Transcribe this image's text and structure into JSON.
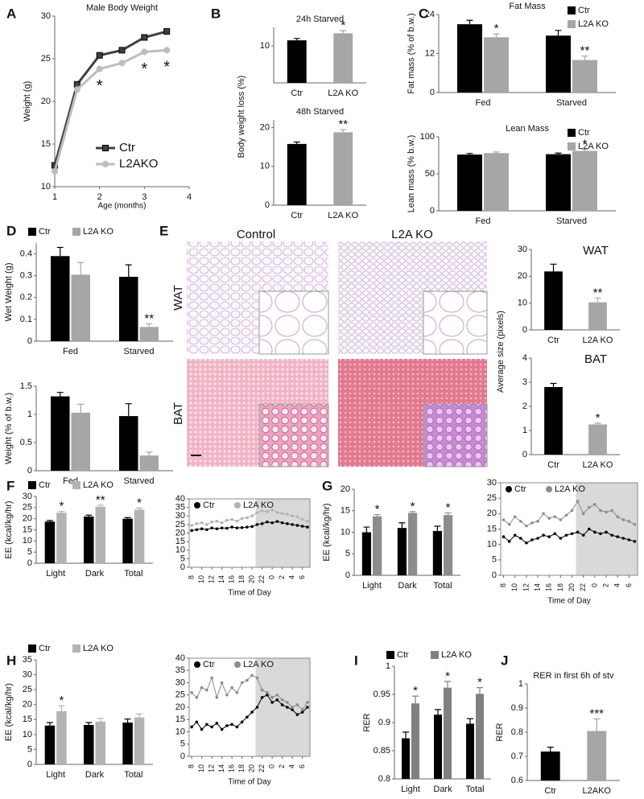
{
  "chart_data": [
    {
      "panel": "A",
      "type": "line",
      "title": "Male Body Weight",
      "xlabel": "Age (months)",
      "ylabel": "Weight (g)",
      "x": [
        1,
        1.5,
        2,
        2.5,
        3,
        3.5
      ],
      "xlim": [
        1,
        4
      ],
      "xticks": [
        1,
        2,
        3,
        4
      ],
      "ylim": [
        10,
        30
      ],
      "yticks": [
        10,
        15,
        20,
        25,
        30
      ],
      "series": [
        {
          "name": "Ctr",
          "color": "#404040",
          "marker": "square",
          "values": [
            12.5,
            22,
            25.4,
            26,
            27.5,
            28.2
          ]
        },
        {
          "name": "L2AKO",
          "color": "#bdbdbd",
          "marker": "circle",
          "values": [
            11.8,
            21.4,
            23.8,
            24.5,
            25.8,
            26
          ]
        }
      ],
      "annotations": [
        {
          "x": 2,
          "text": "*"
        },
        {
          "x": 3,
          "text": "*"
        },
        {
          "x": 3.5,
          "text": "*"
        }
      ],
      "legend": "lower right"
    },
    {
      "panel": "B",
      "type": "bar",
      "title": "24h Starved",
      "ylabel": "Body weight loss (%)",
      "categories": [
        "Ctr",
        "L2A KO"
      ],
      "values": [
        11.5,
        13.4
      ],
      "errors": [
        0.5,
        0.7
      ],
      "colors": [
        "#000000",
        "#a6a6a6"
      ],
      "annotations": [
        null,
        "*"
      ],
      "ylim": [
        0,
        15
      ],
      "yticks": [
        10
      ]
    },
    {
      "type": "bar",
      "title": "48h Starved",
      "categories": [
        "Ctr",
        "L2A KO"
      ],
      "values": [
        15.8,
        18.8
      ],
      "errors": [
        0.5,
        0.7
      ],
      "colors": [
        "#000000",
        "#a6a6a6"
      ],
      "annotations": [
        null,
        "**"
      ],
      "ylim": [
        0,
        22
      ],
      "yticks": [
        0,
        10,
        20
      ]
    },
    {
      "panel": "C",
      "type": "bar",
      "title": "Fat Mass",
      "ylabel": "Fat mass (% of b.w.)",
      "categories": [
        "Fed",
        "Starved"
      ],
      "series": [
        {
          "name": "Ctr",
          "color": "#000000",
          "values": [
            21,
            17.5
          ],
          "errors": [
            1.2,
            1.6
          ]
        },
        {
          "name": "L2A KO",
          "color": "#a6a6a6",
          "values": [
            17,
            10
          ],
          "errors": [
            1,
            1.2
          ],
          "annotations": [
            "*",
            "**"
          ]
        }
      ],
      "ylim": [
        0,
        24
      ],
      "yticks": [
        0,
        12,
        24
      ],
      "legend": "upper right"
    },
    {
      "type": "bar",
      "title": "Lean Mass",
      "ylabel": "Lean mass (% b.w.)",
      "categories": [
        "Fed",
        "Starved"
      ],
      "series": [
        {
          "name": "Ctr",
          "color": "#000000",
          "values": [
            76,
            76.5
          ],
          "errors": [
            1.5,
            1.5
          ]
        },
        {
          "name": "L2A KO",
          "color": "#a6a6a6",
          "values": [
            78,
            81
          ],
          "errors": [
            1.5,
            2
          ],
          "annotations": [
            null,
            "*"
          ]
        }
      ],
      "ylim": [
        0,
        100
      ],
      "yticks": [
        0,
        50,
        100
      ],
      "legend": "upper right"
    },
    {
      "panel": "D",
      "type": "bar",
      "ylabel": "Wet Weight (g)",
      "categories": [
        "Fed",
        "Starved"
      ],
      "series": [
        {
          "name": "Ctr",
          "color": "#000000",
          "values": [
            0.39,
            0.295
          ],
          "errors": [
            0.04,
            0.055
          ]
        },
        {
          "name": "L2A KO",
          "color": "#a6a6a6",
          "values": [
            0.305,
            0.065
          ],
          "errors": [
            0.055,
            0.015
          ],
          "annotations": [
            null,
            "**"
          ]
        }
      ],
      "ylim": [
        0,
        0.45
      ],
      "yticks": [
        0,
        0.1,
        0.2,
        0.3,
        0.4
      ],
      "legend": "above"
    },
    {
      "type": "bar",
      "ylabel": "Weight (% of b.w.)",
      "categories": [
        "Fed",
        "Starved"
      ],
      "series": [
        {
          "color": "#000000",
          "values": [
            1.32,
            0.97
          ],
          "errors": [
            0.07,
            0.22
          ]
        },
        {
          "color": "#a6a6a6",
          "values": [
            1.03,
            0.27
          ],
          "errors": [
            0.15,
            0.06
          ]
        }
      ],
      "ylim": [
        0,
        1.5
      ],
      "yticks": [
        0,
        0.5,
        1,
        1.5
      ]
    },
    {
      "type": "bar",
      "title": "WAT",
      "ylabel": "Average size (pixels)",
      "categories": [
        "Ctr",
        "L2A KO"
      ],
      "values": [
        21.8,
        10.3
      ],
      "errors": [
        2.7,
        1.6
      ],
      "colors": [
        "#000000",
        "#a6a6a6"
      ],
      "annotations": [
        null,
        "**"
      ],
      "ylim": [
        0,
        30
      ],
      "yticks": [
        0,
        10,
        20,
        30
      ]
    },
    {
      "type": "bar",
      "title": "BAT",
      "categories": [
        "Ctr",
        "L2A KO"
      ],
      "values": [
        2.8,
        1.25
      ],
      "errors": [
        0.15,
        0.05
      ],
      "colors": [
        "#000000",
        "#a6a6a6"
      ],
      "annotations": [
        null,
        "*"
      ],
      "ylim": [
        0,
        4
      ],
      "yticks": [
        0,
        1,
        2,
        3,
        4
      ]
    },
    {
      "panel": "F",
      "type": "bar",
      "ylabel": "EE (kcal/kg/hr)",
      "categories": [
        "Light",
        "Dark",
        "Total"
      ],
      "series": [
        {
          "name": "Ctr",
          "color": "#000000",
          "values": [
            18.7,
            21,
            20
          ],
          "errors": [
            0.5,
            0.6,
            0.5
          ]
        },
        {
          "name": "L2A KO",
          "color": "#b3b3b3",
          "values": [
            22.7,
            25.4,
            24.1
          ],
          "errors": [
            0.6,
            0.7,
            0.7
          ],
          "annotations": [
            "*",
            "**",
            "*"
          ]
        }
      ],
      "ylim": [
        0,
        30
      ],
      "yticks": [
        0,
        5,
        10,
        15,
        20,
        25,
        30
      ],
      "legend": "above"
    },
    {
      "type": "line",
      "xlabel": "Time of Day",
      "x": [
        8,
        9,
        10,
        11,
        12,
        13,
        14,
        15,
        16,
        17,
        18,
        19,
        20,
        21,
        22,
        23,
        24,
        25,
        26,
        27,
        28,
        29,
        30,
        31
      ],
      "xlim": [
        7.5,
        31.5
      ],
      "xticks": [
        8,
        10,
        12,
        14,
        16,
        18,
        20,
        22,
        {
          "value": 24,
          "label": "0"
        },
        {
          "value": 26,
          "label": "2"
        },
        {
          "value": 28,
          "label": "4"
        },
        {
          "value": 30,
          "label": "6"
        }
      ],
      "ylim": [
        0,
        40
      ],
      "yticks": [
        0,
        5,
        10,
        15,
        20,
        25,
        30,
        35,
        40
      ],
      "shade": [
        20.7,
        31.5
      ],
      "series": [
        {
          "name": "Ctr",
          "color": "#000000",
          "marker": "circle",
          "values": [
            21.5,
            22,
            22.5,
            22,
            23,
            22.5,
            23,
            22.8,
            23.5,
            23,
            23.2,
            23.5,
            23.8,
            25,
            25.5,
            26.5,
            26,
            26.8,
            26,
            25.5,
            25,
            24.5,
            24,
            23.5
          ]
        },
        {
          "name": "L2A KO",
          "color": "#b3b3b3",
          "marker": "circle",
          "values": [
            24.5,
            25.5,
            26,
            25,
            26.5,
            27,
            26,
            27.5,
            28,
            27,
            28.5,
            29,
            30,
            32,
            33,
            32.5,
            33.5,
            32,
            31.5,
            31,
            30,
            29.5,
            28,
            27
          ]
        }
      ],
      "legend": "top"
    },
    {
      "panel": "G",
      "type": "bar",
      "ylabel": "EE (kcal/kg/hr)",
      "categories": [
        "Light",
        "Dark",
        "Total"
      ],
      "series": [
        {
          "color": "#000000",
          "values": [
            10,
            11,
            10.3
          ],
          "errors": [
            1.2,
            1.2,
            1.1
          ]
        },
        {
          "color": "#8c8c8c",
          "values": [
            13.7,
            14.5,
            14
          ],
          "errors": [
            0.4,
            0.3,
            0.5
          ],
          "annotations": [
            "*",
            "*",
            "*"
          ]
        }
      ],
      "ylim": [
        0,
        20
      ],
      "yticks": [
        0,
        5,
        10,
        15,
        20
      ]
    },
    {
      "type": "line",
      "xlabel": "Time of Day",
      "x": [
        8,
        9,
        10,
        11,
        12,
        13,
        14,
        15,
        16,
        17,
        18,
        19,
        20,
        21,
        22,
        23,
        24,
        25,
        26,
        27,
        28,
        29,
        30,
        31
      ],
      "xlim": [
        7.5,
        31.5
      ],
      "xticks": [
        8,
        10,
        12,
        14,
        16,
        18,
        20,
        22,
        {
          "value": 24,
          "label": "0"
        },
        {
          "value": 26,
          "label": "2"
        },
        {
          "value": 28,
          "label": "4"
        },
        {
          "value": 30,
          "label": "6"
        }
      ],
      "ylim": [
        0,
        30
      ],
      "yticks": [
        0,
        5,
        10,
        15,
        20,
        25,
        30
      ],
      "shade": [
        20.7,
        31.5
      ],
      "series": [
        {
          "name": "Ctr",
          "color": "#000000",
          "marker": "circle",
          "values": [
            12.5,
            11,
            13,
            12,
            10.5,
            11.5,
            12,
            13,
            12.5,
            13.5,
            12,
            13,
            13.5,
            14,
            13,
            15,
            14,
            13.5,
            14,
            13,
            12.5,
            12,
            11.5,
            11
          ]
        },
        {
          "name": "L2A KO",
          "color": "#8c8c8c",
          "marker": "circle",
          "values": [
            18,
            16.5,
            19,
            17.5,
            16,
            17,
            17.5,
            20,
            18.5,
            19,
            18,
            19.5,
            21,
            24,
            20,
            22,
            23,
            21,
            20.5,
            21,
            19,
            18,
            17.5,
            16.5
          ]
        }
      ],
      "legend": "top"
    },
    {
      "panel": "H",
      "type": "bar",
      "ylabel": "EE (kcal/kg/hr)",
      "categories": [
        "Light",
        "Dark",
        "Total"
      ],
      "series": [
        {
          "name": "Ctr",
          "color": "#000000",
          "values": [
            13,
            13.2,
            14
          ],
          "errors": [
            1,
            0.8,
            1.2
          ]
        },
        {
          "name": "L2A KO",
          "color": "#b3b3b3",
          "values": [
            17.8,
            14.3,
            15.7
          ],
          "errors": [
            1.8,
            1.1,
            1.2
          ],
          "annotations": [
            "*",
            null,
            null
          ]
        }
      ],
      "ylim": [
        0,
        35
      ],
      "yticks": [
        0,
        5,
        10,
        15,
        20,
        25,
        30,
        35
      ],
      "legend": "above"
    },
    {
      "type": "line",
      "xlabel": "Time of Day",
      "x": [
        8,
        9,
        10,
        11,
        12,
        13,
        14,
        15,
        16,
        17,
        18,
        19,
        20,
        21,
        22,
        23,
        24,
        25,
        26,
        27,
        28,
        29,
        30,
        31
      ],
      "xlim": [
        7.5,
        31.5
      ],
      "xticks": [
        8,
        10,
        12,
        14,
        16,
        18,
        20,
        22,
        {
          "value": 24,
          "label": "0"
        },
        {
          "value": 26,
          "label": "2"
        },
        {
          "value": 28,
          "label": "4"
        },
        {
          "value": 30,
          "label": "6"
        }
      ],
      "ylim": [
        0,
        40
      ],
      "yticks": [
        0,
        5,
        10,
        15,
        20,
        25,
        30,
        35,
        40
      ],
      "shade": [
        20.7,
        31.5
      ],
      "series": [
        {
          "name": "Ctr",
          "color": "#000000",
          "marker": "circle",
          "values": [
            12,
            14,
            11,
            13,
            12,
            13.5,
            11,
            12.5,
            13,
            12,
            14,
            16,
            18,
            20,
            24,
            25,
            22,
            23,
            21,
            20,
            19,
            17,
            18,
            20
          ]
        },
        {
          "name": "L2A KO",
          "color": "#8c8c8c",
          "marker": "circle",
          "values": [
            26,
            24,
            28,
            27,
            32,
            24,
            30,
            25,
            28,
            26,
            30,
            31,
            33,
            32,
            27,
            26,
            24,
            25,
            23,
            22,
            20,
            21,
            19,
            22
          ]
        }
      ],
      "legend": "top"
    },
    {
      "panel": "I",
      "type": "bar",
      "ylabel": "RER",
      "categories": [
        "Light",
        "Dark",
        "Total"
      ],
      "series": [
        {
          "name": "Ctr",
          "color": "#000000",
          "values": [
            0.872,
            0.914,
            0.898
          ],
          "errors": [
            0.011,
            0.009,
            0.009
          ]
        },
        {
          "name": "L2A KO",
          "color": "#808080",
          "values": [
            0.934,
            0.962,
            0.951
          ],
          "errors": [
            0.013,
            0.011,
            0.011
          ],
          "annotations": [
            "*",
            "*",
            "*"
          ]
        }
      ],
      "ylim": [
        0.8,
        1
      ],
      "yticks": [
        0.8,
        0.85,
        0.9,
        0.95,
        1
      ],
      "legend": "above"
    },
    {
      "panel": "J",
      "type": "bar",
      "title": "RER in first 6h of stv",
      "ylabel": "RER",
      "categories": [
        "Ctr",
        "L2AKO"
      ],
      "values": [
        0.72,
        0.805
      ],
      "errors": [
        0.018,
        0.05
      ],
      "colors": [
        "#000000",
        "#a6a6a6"
      ],
      "annotations": [
        null,
        "***"
      ],
      "ylim": [
        0.6,
        1
      ],
      "yticks": [
        0.6,
        0.7,
        0.8,
        0.9,
        1
      ]
    }
  ],
  "histology": {
    "panel": "E",
    "columns": [
      "Control",
      "L2A KO"
    ],
    "rows": [
      "WAT",
      "BAT"
    ]
  }
}
